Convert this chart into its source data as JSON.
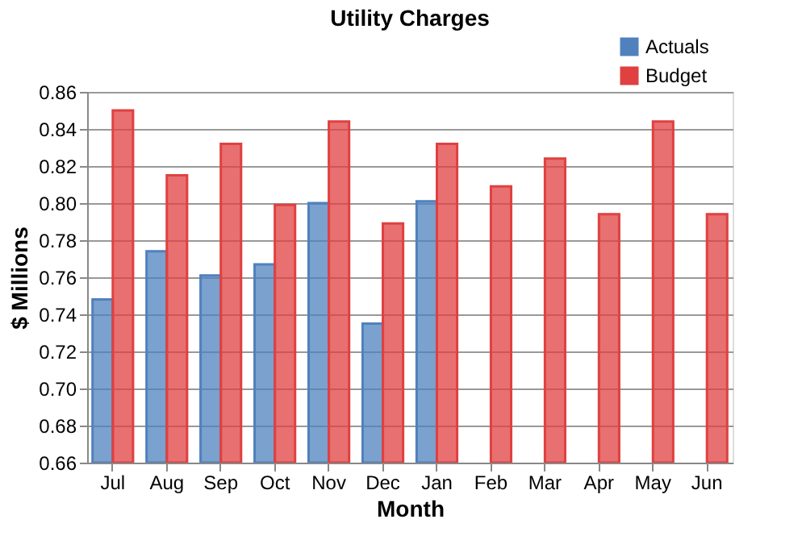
{
  "chart_data": {
    "type": "bar",
    "title": "Utility Charges",
    "xlabel": "Month",
    "ylabel": "$ Millions",
    "categories": [
      "Jul",
      "Aug",
      "Sep",
      "Oct",
      "Nov",
      "Dec",
      "Jan",
      "Feb",
      "Mar",
      "Apr",
      "May",
      "Jun"
    ],
    "series": [
      {
        "name": "Actuals",
        "color": "#4f81bd",
        "values": [
          0.748,
          0.774,
          0.761,
          0.767,
          0.8,
          0.735,
          0.801,
          null,
          null,
          null,
          null,
          null
        ]
      },
      {
        "name": "Budget",
        "color": "#e04040",
        "values": [
          0.85,
          0.815,
          0.832,
          0.799,
          0.844,
          0.789,
          0.832,
          0.809,
          0.824,
          0.794,
          0.844,
          0.794
        ]
      }
    ],
    "ylim": [
      0.66,
      0.86
    ],
    "yticks": [
      {
        "value": 0.66,
        "label": "0.66"
      },
      {
        "value": 0.68,
        "label": "0.68"
      },
      {
        "value": 0.7,
        "label": "0.70"
      },
      {
        "value": 0.72,
        "label": "0.72"
      },
      {
        "value": 0.74,
        "label": "0.74"
      },
      {
        "value": 0.76,
        "label": "0.76"
      },
      {
        "value": 0.78,
        "label": "0.78"
      },
      {
        "value": 0.8,
        "label": "0.80"
      },
      {
        "value": 0.82,
        "label": "0.82"
      },
      {
        "value": 0.84,
        "label": "0.84"
      },
      {
        "value": 0.86,
        "label": "0.86"
      }
    ],
    "grid": "y",
    "legend": "top right"
  }
}
